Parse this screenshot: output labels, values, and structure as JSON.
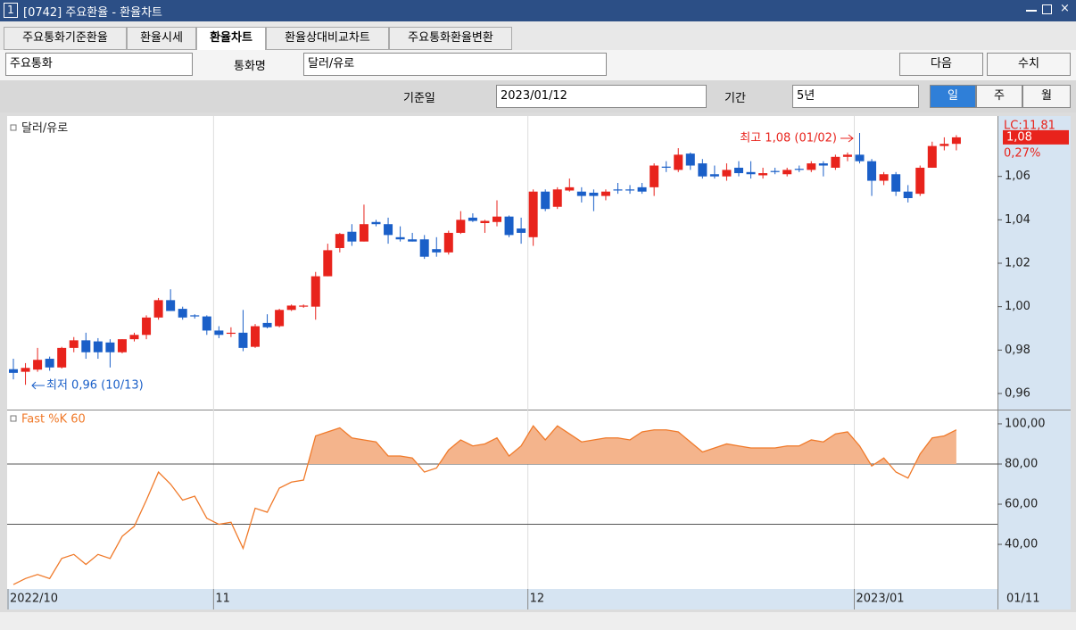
{
  "window": {
    "number": "1",
    "title": "[0742] 주요환율 - 환율차트"
  },
  "tabs": [
    "주요통화기준환율",
    "환율시세",
    "환율차트",
    "환율상대비교차트",
    "주요통화환율변환"
  ],
  "toolbar": {
    "market": "주요통화",
    "currency_label": "통화명",
    "currency": "달러/유로",
    "next": "다음",
    "values": "수치",
    "date_label": "기준일",
    "date": "2023/01/12",
    "period_label": "기간",
    "period": "5년",
    "day": "일",
    "week": "주",
    "month": "월"
  },
  "chart_data": [
    {
      "type": "candlestick",
      "title": "달러/유로",
      "categories": [
        "2022/10",
        null,
        null,
        null,
        null,
        null,
        null,
        null,
        null,
        null,
        null,
        null,
        null,
        null,
        null,
        null,
        null,
        "11",
        null,
        null,
        null,
        null,
        null,
        null,
        null,
        null,
        null,
        null,
        null,
        null,
        null,
        null,
        null,
        null,
        null,
        null,
        null,
        null,
        null,
        null,
        null,
        null,
        null,
        "12",
        null,
        null,
        null,
        null,
        null,
        null,
        null,
        null,
        null,
        null,
        null,
        null,
        null,
        null,
        null,
        null,
        null,
        null,
        null,
        null,
        null,
        null,
        null,
        null,
        null,
        null,
        "2023/01",
        null,
        null,
        null,
        null,
        null,
        null,
        null,
        null
      ],
      "open": [
        0.9712,
        0.97,
        0.971,
        0.976,
        0.972,
        0.981,
        0.9845,
        0.984,
        0.9835,
        0.979,
        0.985,
        0.987,
        0.995,
        1.003,
        0.999,
        0.996,
        0.9955,
        0.989,
        0.9875,
        0.988,
        0.9815,
        0.9925,
        0.991,
        0.9985,
        1.0,
        1.0,
        1.014,
        1.027,
        1.0345,
        1.03,
        1.039,
        1.038,
        1.032,
        1.031,
        1.031,
        1.0265,
        1.025,
        1.034,
        1.041,
        1.0385,
        1.039,
        1.0415,
        1.036,
        1.032,
        1.053,
        1.046,
        1.0535,
        1.053,
        1.0525,
        1.051,
        1.054,
        1.054,
        1.055,
        1.055,
        1.0645,
        1.063,
        1.0705,
        1.066,
        1.061,
        1.06,
        1.064,
        1.062,
        1.0605,
        1.0625,
        1.061,
        1.0635,
        1.063,
        1.066,
        1.064,
        1.069,
        1.07,
        1.067,
        1.058,
        1.061,
        1.053,
        1.052,
        1.064,
        1.074,
        1.075
      ],
      "high": [
        0.976,
        0.974,
        0.981,
        0.977,
        0.9815,
        0.986,
        0.988,
        0.9855,
        0.985,
        0.985,
        0.988,
        0.996,
        1.004,
        1.008,
        1.0,
        0.9965,
        0.996,
        0.991,
        0.9905,
        0.9985,
        0.992,
        0.9965,
        0.999,
        1.001,
        1.001,
        1.016,
        1.029,
        1.034,
        1.038,
        1.047,
        1.04,
        1.041,
        1.037,
        1.034,
        1.033,
        1.032,
        1.035,
        1.044,
        1.043,
        1.04,
        1.049,
        1.042,
        1.041,
        1.054,
        1.054,
        1.055,
        1.059,
        1.055,
        1.054,
        1.054,
        1.057,
        1.056,
        1.057,
        1.066,
        1.067,
        1.073,
        1.071,
        1.068,
        1.065,
        1.066,
        1.067,
        1.067,
        1.064,
        1.064,
        1.064,
        1.065,
        1.067,
        1.067,
        1.07,
        1.071,
        1.08,
        1.068,
        1.062,
        1.062,
        1.056,
        1.065,
        1.076,
        1.078,
        1.079
      ],
      "low": [
        0.9665,
        0.964,
        0.97,
        0.9705,
        0.9715,
        0.979,
        0.976,
        0.976,
        0.972,
        0.9785,
        0.984,
        0.985,
        0.994,
        0.998,
        0.994,
        0.9945,
        0.987,
        0.9855,
        0.986,
        0.9795,
        0.981,
        0.99,
        0.9905,
        0.998,
        0.9995,
        0.994,
        1.014,
        1.025,
        1.028,
        1.03,
        1.037,
        1.029,
        1.03,
        1.03,
        1.022,
        1.023,
        1.024,
        1.0335,
        1.039,
        1.034,
        1.037,
        1.032,
        1.029,
        1.028,
        1.044,
        1.045,
        1.053,
        1.048,
        1.044,
        1.049,
        1.052,
        1.052,
        1.052,
        1.051,
        1.062,
        1.062,
        1.063,
        1.059,
        1.059,
        1.058,
        1.06,
        1.059,
        1.059,
        1.061,
        1.06,
        1.062,
        1.062,
        1.06,
        1.063,
        1.067,
        1.066,
        1.051,
        1.056,
        1.051,
        1.048,
        1.051,
        1.064,
        1.072,
        1.072
      ],
      "close": [
        0.9695,
        0.9718,
        0.9755,
        0.972,
        0.981,
        0.9845,
        0.979,
        0.979,
        0.979,
        0.985,
        0.987,
        0.995,
        1.003,
        0.998,
        0.995,
        0.9955,
        0.989,
        0.987,
        0.988,
        0.981,
        0.991,
        0.9905,
        0.9985,
        1.0005,
        1.0005,
        1.014,
        1.026,
        1.0335,
        1.03,
        1.038,
        1.038,
        1.033,
        1.031,
        1.03,
        1.023,
        1.025,
        1.034,
        1.04,
        1.0395,
        1.0395,
        1.0415,
        1.033,
        1.034,
        1.053,
        1.045,
        1.054,
        1.055,
        1.051,
        1.051,
        1.053,
        1.0535,
        1.0535,
        1.053,
        1.065,
        1.064,
        1.07,
        1.065,
        1.06,
        1.06,
        1.063,
        1.0615,
        1.061,
        1.0615,
        1.062,
        1.063,
        1.063,
        1.066,
        1.065,
        1.069,
        1.07,
        1.067,
        1.058,
        1.061,
        1.053,
        1.05,
        1.064,
        1.074,
        1.075,
        1.078
      ],
      "up_color": "#e8231c",
      "down_color": "#1a5fc8",
      "ylim": [
        0.953,
        1.087
      ],
      "yticks": [
        {
          "value": 0.96,
          "label": "0,96"
        },
        {
          "value": 0.98,
          "label": "0,98"
        },
        {
          "value": 1.0,
          "label": "1,00"
        },
        {
          "value": 1.02,
          "label": "1,02"
        },
        {
          "value": 1.04,
          "label": "1,04"
        },
        {
          "value": 1.06,
          "label": "1,06"
        }
      ],
      "annotations": [
        "최고 1,08 (01/02)",
        "최저 0,96 (10/13)"
      ],
      "lc_label": "LC:11,81",
      "last_label": "1,08",
      "change_label": "0,27%",
      "x_end_label": "01/11"
    },
    {
      "type": "line",
      "title": "Fast %K 60",
      "values": [
        20,
        23,
        25,
        23,
        33,
        35,
        30,
        35,
        33,
        44,
        49,
        62,
        76,
        70,
        62,
        64,
        53,
        50,
        51,
        38,
        58,
        56,
        68,
        71,
        72,
        94,
        96,
        98,
        93,
        92,
        91,
        84,
        84,
        83,
        76,
        78,
        87,
        92,
        89,
        90,
        93,
        84,
        89,
        99,
        92,
        99,
        95,
        91,
        92,
        93,
        93,
        92,
        96,
        97,
        97,
        96,
        91,
        86,
        88,
        90,
        89,
        88,
        88,
        88,
        89,
        89,
        92,
        91,
        95,
        96,
        89,
        79,
        83,
        76,
        73,
        85,
        93,
        94,
        97
      ],
      "color": "#f07a2a",
      "fill_color": "#f4b48c",
      "ylim": [
        18.7,
        106.2
      ],
      "yticks": [
        {
          "value": 40,
          "label": "40,00"
        },
        {
          "value": 60,
          "label": "60,00"
        },
        {
          "value": 80,
          "label": "80,00"
        },
        {
          "value": 100,
          "label": "100,00"
        }
      ],
      "ref_lines": [
        80,
        50
      ]
    }
  ]
}
